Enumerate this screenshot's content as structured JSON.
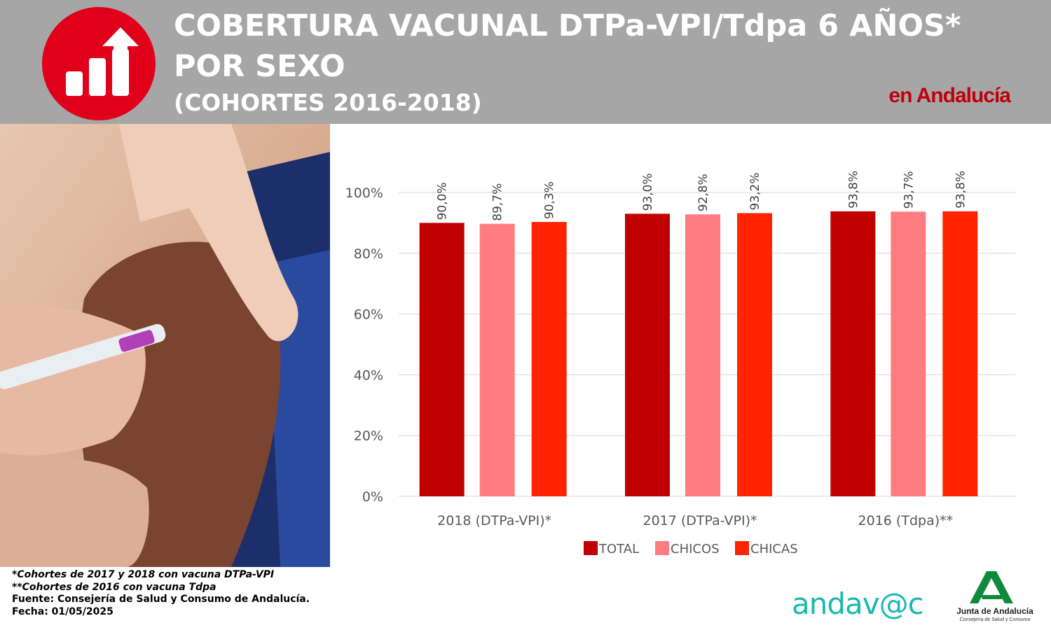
{
  "header": {
    "title_line1": "COBERTURA VACUNAL DTPa-VPI/Tdpa 6 AÑOS*",
    "title_line2": "POR SEXO",
    "title_line3": "(COHORTES 2016-2018)",
    "region": "en Andalucía",
    "icon": "bar-chart-up-arrow-icon"
  },
  "colors": {
    "header_bg": "#a6a6a6",
    "logo_circle": "#e1001a",
    "total": "#c00000",
    "chicos": "#ff7c80",
    "chicas": "#ff2300",
    "region_text": "#c0000c"
  },
  "chart_data": {
    "type": "bar",
    "categories": [
      "2018 (DTPa-VPI)*",
      "2017 (DTPa-VPI)*",
      "2016 (Tdpa)**"
    ],
    "series": [
      {
        "name": "TOTAL",
        "values": [
          90.0,
          93.0,
          93.8
        ],
        "labels": [
          "90,0%",
          "93,0%",
          "93,8%"
        ],
        "color": "#c00000"
      },
      {
        "name": "CHICOS",
        "values": [
          89.7,
          92.8,
          93.7
        ],
        "labels": [
          "89,7%",
          "92,8%",
          "93,7%"
        ],
        "color": "#ff7c80"
      },
      {
        "name": "CHICAS",
        "values": [
          90.3,
          93.2,
          93.8
        ],
        "labels": [
          "90,3%",
          "93,2%",
          "93,8%"
        ],
        "color": "#ff2300"
      }
    ],
    "yticks": [
      "0%",
      "20%",
      "40%",
      "60%",
      "80%",
      "100%"
    ],
    "ylim": [
      0,
      100
    ],
    "grid": true,
    "legend": "bottom"
  },
  "footnotes": {
    "note1": "*Cohortes de 2017 y 2018 con vacuna DTPa-VPI",
    "note2": "**Cohortes de 2016 con vacuna Tdpa",
    "source": "Fuente: Consejería de Salud y Consumo de Andalucía.",
    "date": "Fecha: 01/05/2025"
  },
  "logos": {
    "andavac": "andav@c",
    "junta_name": "Junta de Andalucía",
    "junta_sub": "Consejería de Salud y Consumo"
  }
}
